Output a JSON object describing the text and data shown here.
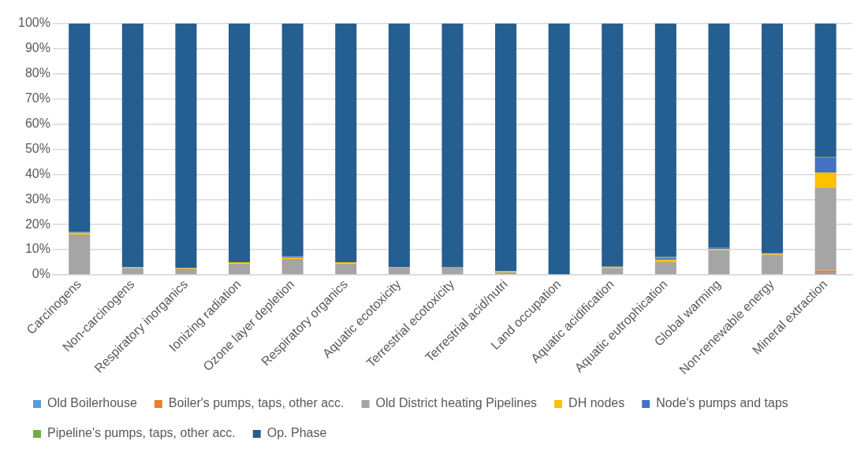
{
  "chart_data": {
    "type": "bar",
    "stacked": true,
    "categories": [
      "Carcinogens",
      "Non-carcinogens",
      "Respiratory inorganics",
      "Ionizing radiation",
      "Ozone layer depletion",
      "Respiratory organics",
      "Aquatic ecotoxicity",
      "Terrestrial ecotoxicity",
      "Terrestrial acid/nutri",
      "Land occupation",
      "Aquatic acidification",
      "Aquatic eutrophication",
      "Global warming",
      "Non-renewable energy",
      "Mineral extraction"
    ],
    "ylim": [
      0,
      100
    ],
    "yticks": [
      {
        "value": 0,
        "label": "0%"
      },
      {
        "value": 10,
        "label": "10%"
      },
      {
        "value": 20,
        "label": "20%"
      },
      {
        "value": 30,
        "label": "30%"
      },
      {
        "value": 40,
        "label": "40%"
      },
      {
        "value": 50,
        "label": "50%"
      },
      {
        "value": 60,
        "label": "60%"
      },
      {
        "value": 70,
        "label": "70%"
      },
      {
        "value": 80,
        "label": "80%"
      },
      {
        "value": 90,
        "label": "90%"
      },
      {
        "value": 100,
        "label": "100%"
      }
    ],
    "grid": "y",
    "legend": "bottom",
    "series": [
      {
        "name": "Old Boilerhouse",
        "color": "#5b9bd5",
        "values": [
          0,
          0,
          0,
          0,
          0,
          0,
          0,
          0,
          0,
          0,
          0,
          0,
          0,
          0,
          0.8
        ]
      },
      {
        "name": "Boiler's pumps, taps, other acc.",
        "color": "#ed7d31",
        "values": [
          0,
          0,
          0,
          0,
          0,
          0,
          0,
          0,
          0,
          0,
          0,
          0,
          0,
          0,
          0.9
        ]
      },
      {
        "name": "Old District heating Pipelines",
        "color": "#a5a5a5",
        "values": [
          16,
          2.7,
          2.5,
          4.5,
          6.3,
          4.5,
          2.8,
          3,
          1,
          0.2,
          2.7,
          5,
          9.8,
          8,
          33
        ]
      },
      {
        "name": "DH nodes",
        "color": "#ffc000",
        "values": [
          0.7,
          0.3,
          0.3,
          0.5,
          0.6,
          0.5,
          0.2,
          null,
          0.4,
          0,
          0.5,
          1,
          0.5,
          0.5,
          6
        ]
      },
      {
        "name": "Node's pumps and taps",
        "color": "#4472c4",
        "values": [
          0.4,
          0,
          0,
          0,
          0.5,
          0,
          0,
          0,
          0,
          0,
          0,
          0.8,
          0.6,
          0,
          6
        ]
      },
      {
        "name": "Pipeline's pumps, taps, other acc.",
        "color": "#70ad47",
        "values": [
          0,
          0,
          0,
          0,
          0,
          0,
          0,
          0,
          0,
          0,
          0,
          0.3,
          0,
          0,
          0.3
        ]
      },
      {
        "name": "Op. Phase",
        "color": "#255e91",
        "values": [
          82.9,
          97,
          97.2,
          95,
          92.6,
          95,
          97,
          97,
          98.6,
          99.8,
          96.8,
          92.9,
          89.1,
          91.5,
          53
        ]
      }
    ]
  }
}
